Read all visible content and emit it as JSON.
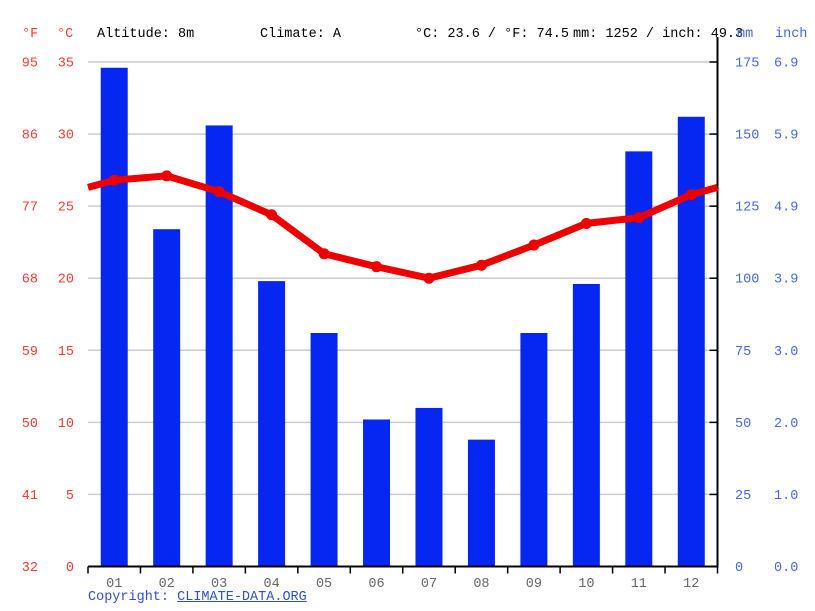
{
  "header": {
    "f_label": "°F",
    "c_label": "°C",
    "altitude": "Altitude: 8m",
    "climate": "Climate: A",
    "temp_summary": "°C: 23.6 / °F: 74.5",
    "precip_summary": "mm: 1252 / inch: 49.3",
    "mm_label": "mm",
    "inch_label": "inch"
  },
  "footer": {
    "copyright_label": "Copyright: ",
    "link_text": "CLIMATE-DATA.ORG"
  },
  "chart_data": {
    "type": "combo",
    "categories": [
      "01",
      "02",
      "03",
      "04",
      "05",
      "06",
      "07",
      "08",
      "09",
      "10",
      "11",
      "12"
    ],
    "series": [
      {
        "name": "precipitation",
        "type": "bar",
        "unit": "mm",
        "values": [
          173,
          117,
          153,
          99,
          81,
          51,
          55,
          44,
          81,
          98,
          144,
          156
        ]
      },
      {
        "name": "temperature",
        "type": "line",
        "unit": "°C",
        "values": [
          26.8,
          27.1,
          26.0,
          24.4,
          21.7,
          20.8,
          20.0,
          20.9,
          22.3,
          23.8,
          24.2,
          25.8
        ]
      }
    ],
    "totals": {
      "precip_mm": 1252,
      "precip_inch": 49.3,
      "temp_avg_c": 23.6,
      "temp_avg_f": 74.5
    },
    "axes": {
      "left_f": {
        "label": "°F",
        "ticks": [
          "95",
          "86",
          "77",
          "68",
          "59",
          "50",
          "41",
          "32"
        ]
      },
      "left_c": {
        "label": "°C",
        "ticks": [
          "35",
          "30",
          "25",
          "20",
          "15",
          "10",
          "5",
          "0"
        ]
      },
      "right_mm": {
        "label": "mm",
        "ticks": [
          "175",
          "150",
          "125",
          "100",
          "75",
          "50",
          "25",
          "0"
        ]
      },
      "right_in": {
        "label": "inch",
        "ticks": [
          "6.9",
          "5.9",
          "4.9",
          "3.9",
          "3.0",
          "2.0",
          "1.0",
          "0.0"
        ]
      }
    },
    "ylim_c": [
      0,
      35
    ],
    "ylim_mm": [
      0,
      175
    ],
    "grid": true,
    "legend": "none"
  },
  "colors": {
    "bar": "#0627f2",
    "line": "#ec0000",
    "red_text": "#ff3838",
    "blue_text": "#4a66dd",
    "copyright": "#2d50cf",
    "grid": "#cccccc",
    "axis": "#000000",
    "month_text": "#666666"
  }
}
